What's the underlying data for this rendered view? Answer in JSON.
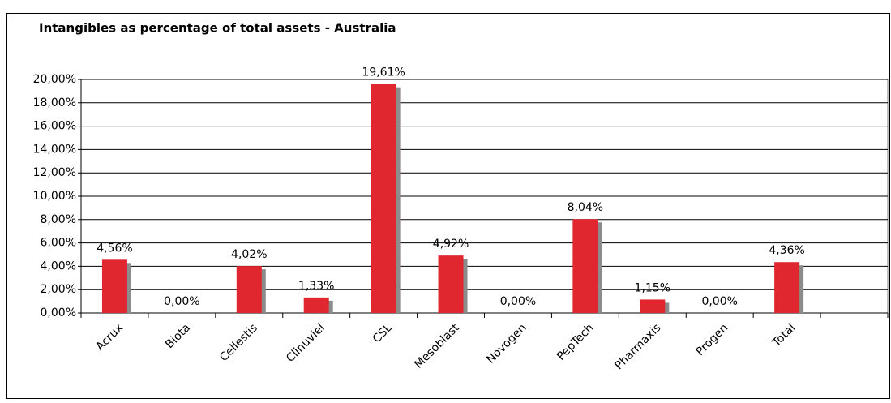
{
  "chart_data": {
    "type": "bar",
    "title": "Intangibles as percentage of total assets - Australia",
    "categories": [
      "Acrux",
      "Biota",
      "Cellestis",
      "Clinuviel",
      "CSL",
      "Mesoblast",
      "Novogen",
      "PepTech",
      "Pharmaxis",
      "Progen",
      "Total",
      null
    ],
    "values": [
      4.56,
      0,
      4.02,
      1.33,
      19.61,
      4.92,
      0,
      8.04,
      1.15,
      0,
      4.36,
      null
    ],
    "value_labels": [
      "4,56%",
      "0,00%",
      "4,02%",
      "1,33%",
      "19,61%",
      "4,92%",
      "0,00%",
      "8,04%",
      "1,15%",
      "0,00%",
      "4,36%",
      null
    ],
    "color": "#e0262f",
    "ylim": [
      0,
      20
    ],
    "yticks": [
      {
        "value": 0,
        "label": "0,00%"
      },
      {
        "value": 2,
        "label": "2,00%"
      },
      {
        "value": 4,
        "label": "4,00%"
      },
      {
        "value": 6,
        "label": "6,00%"
      },
      {
        "value": 8,
        "label": "8,00%"
      },
      {
        "value": 10,
        "label": "10,00%"
      },
      {
        "value": 12,
        "label": "12,00%"
      },
      {
        "value": 14,
        "label": "14,00%"
      },
      {
        "value": 16,
        "label": "16,00%"
      },
      {
        "value": 18,
        "label": "18,00%"
      },
      {
        "value": 20,
        "label": "20,00%"
      }
    ],
    "grid": true
  }
}
